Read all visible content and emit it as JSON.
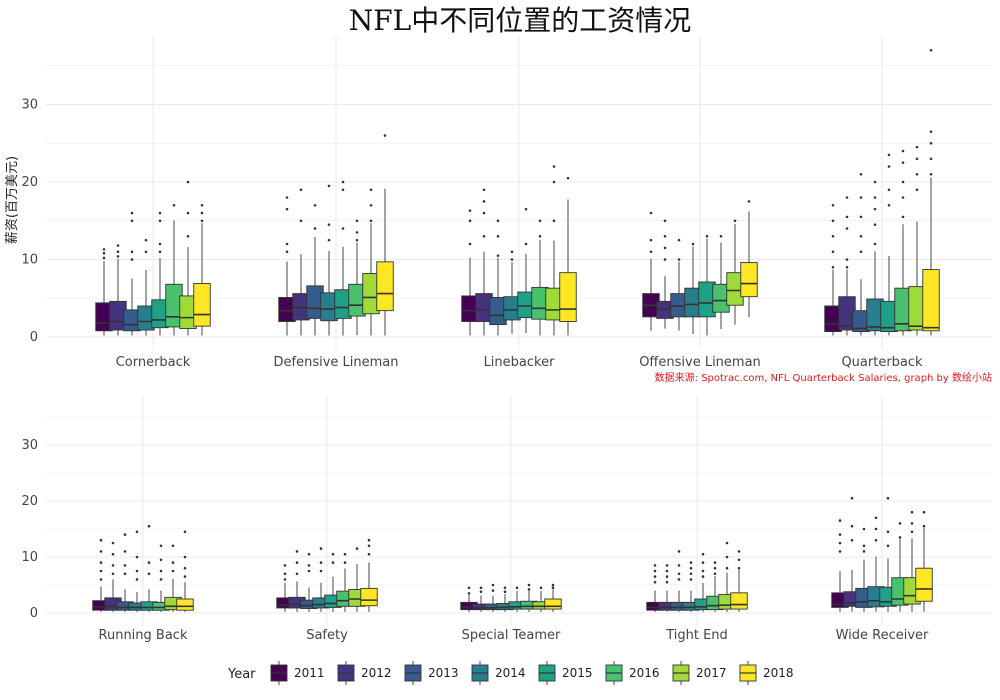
{
  "chart_data": {
    "type": "box",
    "title": "NFL中不同位置的工资情况",
    "ylabel": "薪资(百万美元)",
    "caption": "数据来源: Spotrac.com, NFL Quarterback Salaries, graph by 数绘小站",
    "ylim": [
      -1,
      38
    ],
    "yticks": [
      0,
      10,
      20,
      30
    ],
    "legend": {
      "title": "Year",
      "position": "bottom",
      "years": [
        "2011",
        "2012",
        "2013",
        "2014",
        "2015",
        "2016",
        "2017",
        "2018"
      ],
      "colors": [
        "#440154",
        "#46337e",
        "#365c8d",
        "#277f8e",
        "#1fa187",
        "#4ac16d",
        "#a0da39",
        "#fde725"
      ]
    },
    "panels": [
      {
        "categories": [
          {
            "name": "Cornerback",
            "boxes": [
              [
                0.8,
                4.4,
                1.8
              ],
              [
                0.9,
                4.6,
                2.0
              ],
              [
                0.8,
                3.5,
                1.6
              ],
              [
                0.9,
                4.0,
                2.0
              ],
              [
                1.2,
                4.8,
                2.2
              ],
              [
                1.3,
                6.8,
                2.6
              ],
              [
                1.1,
                5.3,
                2.5
              ],
              [
                1.4,
                6.9,
                2.9
              ]
            ],
            "outliers": [
              [
                11.3,
                10.8,
                10.2
              ],
              [
                11.8,
                11.0,
                10.4
              ],
              [
                16.0,
                15.0,
                11.0,
                10.0
              ],
              [
                12.5,
                11.0
              ],
              [
                16.0,
                15.0,
                12.0,
                11.0
              ],
              [
                17.0
              ],
              [
                20.0,
                16.0,
                13.0
              ],
              [
                17.0,
                16.0,
                15.0
              ]
            ]
          },
          {
            "name": "Defensive Lineman",
            "boxes": [
              [
                2.0,
                5.1,
                3.4
              ],
              [
                2.2,
                5.6,
                3.8
              ],
              [
                2.4,
                6.6,
                3.7
              ],
              [
                2.1,
                5.7,
                3.6
              ],
              [
                2.4,
                6.1,
                3.8
              ],
              [
                2.7,
                6.8,
                4.1
              ],
              [
                3.0,
                8.2,
                5.1
              ],
              [
                3.4,
                9.7,
                5.6
              ]
            ],
            "outliers": [
              [
                18.0,
                16.5,
                12.0,
                11.0
              ],
              [
                19.0,
                15.0
              ],
              [
                17.0,
                14.0
              ],
              [
                19.5,
                14.5,
                12.5
              ],
              [
                20.0,
                19.0,
                14.0
              ],
              [
                15.0,
                13.5,
                12.5
              ],
              [
                19.0,
                17.0,
                15.0
              ],
              [
                26.0
              ]
            ]
          },
          {
            "name": "Linebacker",
            "boxes": [
              [
                2.0,
                5.3,
                3.4
              ],
              [
                2.0,
                5.6,
                3.5
              ],
              [
                1.6,
                5.1,
                2.8
              ],
              [
                2.2,
                5.2,
                3.5
              ],
              [
                2.5,
                5.8,
                4.0
              ],
              [
                2.3,
                6.4,
                3.7
              ],
              [
                2.2,
                6.3,
                3.5
              ],
              [
                2.0,
                8.3,
                3.6
              ]
            ],
            "outliers": [
              [
                16.3,
                15.0,
                12.0
              ],
              [
                19.0,
                17.5,
                16.0,
                13.0
              ],
              [
                15.0,
                13.0,
                10.5
              ],
              [
                11.0,
                10.0
              ],
              [
                16.5,
                12.0
              ],
              [
                15.0,
                13.0
              ],
              [
                22.0,
                20.0,
                15.0
              ],
              [
                20.5
              ]
            ]
          },
          {
            "name": "Offensive Lineman",
            "boxes": [
              [
                2.6,
                5.6,
                4.1
              ],
              [
                2.4,
                4.6,
                3.6
              ],
              [
                2.6,
                5.6,
                4.0
              ],
              [
                2.6,
                6.3,
                4.2
              ],
              [
                2.6,
                7.1,
                4.4
              ],
              [
                3.2,
                6.8,
                4.7
              ],
              [
                4.1,
                8.3,
                6.0
              ],
              [
                5.2,
                9.6,
                6.9
              ]
            ],
            "outliers": [
              [
                16.0,
                12.5,
                11.0
              ],
              [
                15.0,
                13.0,
                11.5,
                10.0
              ],
              [
                12.5,
                10.0
              ],
              [
                12.0
              ],
              [
                13.0
              ],
              [
                13.0
              ],
              [
                15.0
              ],
              [
                17.5
              ]
            ]
          },
          {
            "name": "Quarterback",
            "boxes": [
              [
                0.7,
                4.0,
                1.7
              ],
              [
                0.9,
                5.2,
                1.4
              ],
              [
                0.7,
                3.4,
                1.1
              ],
              [
                0.8,
                4.9,
                1.3
              ],
              [
                0.7,
                4.6,
                1.2
              ],
              [
                0.8,
                6.3,
                1.7
              ],
              [
                0.9,
                6.5,
                1.4
              ],
              [
                0.8,
                8.7,
                1.2
              ]
            ],
            "outliers": [
              [
                17.0,
                15.0,
                13.0,
                11.0,
                9.0
              ],
              [
                18.0,
                15.5,
                14.0,
                10.0,
                9.0
              ],
              [
                21.0,
                18.0,
                15.5,
                13.0,
                11.0
              ],
              [
                20.0,
                18.0,
                16.5,
                14.5,
                12.0
              ],
              [
                23.5,
                22.0,
                19.0,
                17.0
              ],
              [
                24.0,
                22.5,
                20.0,
                18.0,
                15.5
              ],
              [
                24.5,
                23.0,
                21.0,
                19.0
              ],
              [
                37.0,
                26.5,
                25.0,
                23.0,
                21.0
              ]
            ]
          }
        ]
      },
      {
        "categories": [
          {
            "name": "Running Back",
            "boxes": [
              [
                0.5,
                2.2,
                1.1
              ],
              [
                0.5,
                2.7,
                1.2
              ],
              [
                0.5,
                2.0,
                1.0
              ],
              [
                0.5,
                1.8,
                1.0
              ],
              [
                0.5,
                2.0,
                1.0
              ],
              [
                0.5,
                1.9,
                1.0
              ],
              [
                0.6,
                2.8,
                1.2
              ],
              [
                0.5,
                2.5,
                1.2
              ]
            ],
            "outliers": [
              [
                13.0,
                11.0,
                9.0,
                7.5,
                6.0
              ],
              [
                12.5,
                10.5,
                8.5,
                7.0
              ],
              [
                14.0,
                11.0,
                8.5,
                7.0
              ],
              [
                14.5,
                10.0,
                7.5,
                6.0
              ],
              [
                15.5,
                9.0,
                7.0
              ],
              [
                12.0,
                9.5,
                7.5,
                6.0
              ],
              [
                12.0,
                9.0,
                7.5
              ],
              [
                14.5,
                10.0,
                8.0,
                6.5
              ]
            ]
          },
          {
            "name": "Safety",
            "boxes": [
              [
                0.9,
                2.7,
                1.4
              ],
              [
                0.9,
                2.8,
                1.5
              ],
              [
                0.8,
                2.3,
                1.3
              ],
              [
                0.9,
                2.7,
                1.5
              ],
              [
                1.0,
                3.2,
                1.7
              ],
              [
                1.2,
                3.9,
                2.2
              ],
              [
                1.2,
                4.2,
                2.5
              ],
              [
                1.3,
                4.4,
                2.3
              ]
            ],
            "outliers": [
              [
                8.5,
                7.0,
                6.0
              ],
              [
                11.0,
                9.0,
                7.0
              ],
              [
                10.5,
                8.5,
                7.5
              ],
              [
                11.5,
                9.0,
                7.5
              ],
              [
                10.5,
                9.0
              ],
              [
                10.5,
                9.0
              ],
              [
                11.5
              ],
              [
                13.0,
                12.0,
                10.5
              ]
            ]
          },
          {
            "name": "Special Teamer",
            "boxes": [
              [
                0.6,
                1.9,
                1.0
              ],
              [
                0.6,
                1.6,
                0.9
              ],
              [
                0.6,
                1.6,
                0.9
              ],
              [
                0.6,
                1.7,
                1.0
              ],
              [
                0.7,
                2.0,
                1.1
              ],
              [
                0.7,
                2.1,
                1.2
              ],
              [
                0.7,
                2.0,
                1.2
              ],
              [
                0.7,
                2.5,
                1.2
              ]
            ],
            "outliers": [
              [
                4.5,
                3.5
              ],
              [
                4.5,
                3.8
              ],
              [
                5.0,
                4.0
              ],
              [
                4.5,
                3.8
              ],
              [
                4.5
              ],
              [
                5.0,
                4.2
              ],
              [
                4.5
              ],
              [
                5.0,
                4.5
              ]
            ]
          },
          {
            "name": "Tight End",
            "boxes": [
              [
                0.5,
                1.9,
                1.0
              ],
              [
                0.5,
                1.9,
                1.0
              ],
              [
                0.5,
                1.9,
                1.0
              ],
              [
                0.5,
                1.9,
                1.0
              ],
              [
                0.6,
                2.5,
                1.1
              ],
              [
                0.6,
                3.0,
                1.3
              ],
              [
                0.7,
                3.3,
                1.4
              ],
              [
                0.7,
                3.6,
                1.5
              ]
            ],
            "outliers": [
              [
                8.5,
                7.5,
                6.5,
                5.5
              ],
              [
                8.5,
                7.5,
                6.5,
                5.5
              ],
              [
                11.0,
                8.5,
                7.0,
                6.0
              ],
              [
                9.0,
                8.0,
                7.0,
                6.0
              ],
              [
                10.5,
                9.0,
                7.5,
                6.5
              ],
              [
                9.0,
                8.0,
                7.0
              ],
              [
                12.5,
                10.0,
                8.0
              ],
              [
                11.0,
                9.5,
                8.0
              ]
            ]
          },
          {
            "name": "Wide Receiver",
            "boxes": [
              [
                1.0,
                3.6,
                1.6
              ],
              [
                1.2,
                3.8,
                1.8
              ],
              [
                1.0,
                4.4,
                2.0
              ],
              [
                1.1,
                4.7,
                2.2
              ],
              [
                1.2,
                4.6,
                2.0
              ],
              [
                1.4,
                6.3,
                2.5
              ],
              [
                1.6,
                6.3,
                3.1
              ],
              [
                2.1,
                8.0,
                4.3
              ]
            ],
            "outliers": [
              [
                16.5,
                14.0,
                12.5,
                11.0
              ],
              [
                20.5,
                15.5,
                13.0
              ],
              [
                15.0,
                12.0,
                11.0
              ],
              [
                17.0,
                15.0,
                13.0
              ],
              [
                20.5,
                14.5,
                12.0
              ],
              [
                16.0,
                13.5
              ],
              [
                18.0,
                16.0,
                14.5
              ],
              [
                18.0,
                15.5
              ]
            ]
          }
        ]
      }
    ]
  }
}
